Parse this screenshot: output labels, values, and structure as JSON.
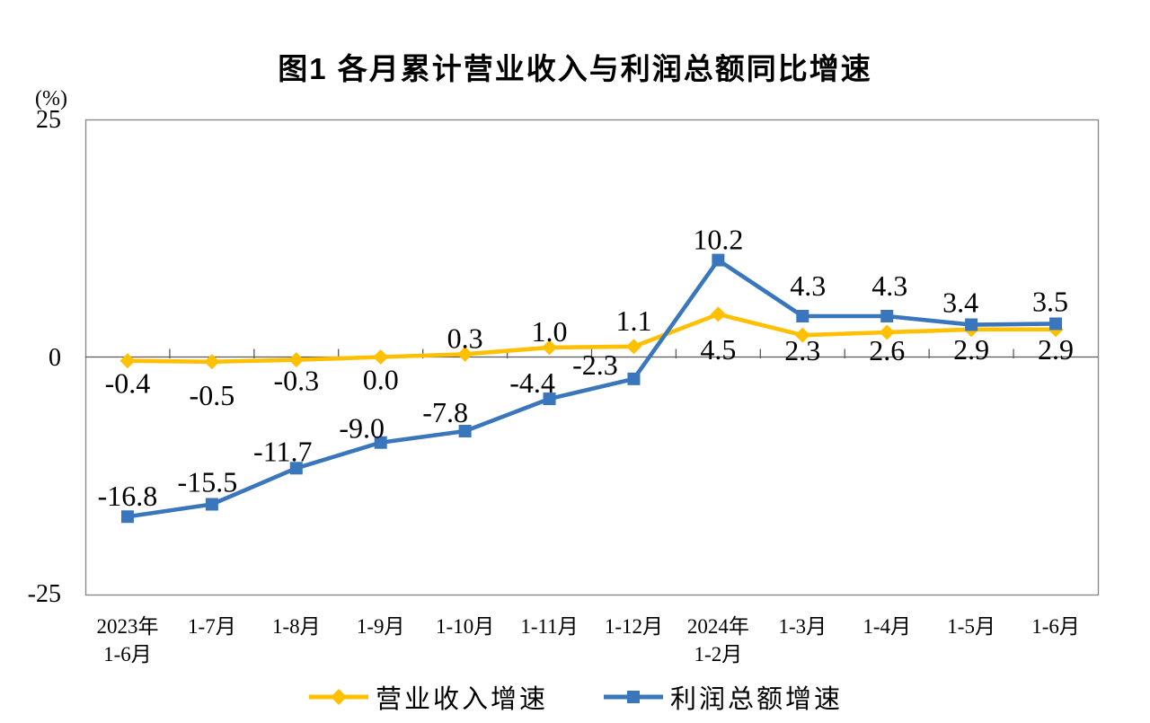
{
  "title": "图1 各月累计营业收入与利润总额同比增速",
  "chart_data": {
    "type": "line",
    "title": "图1 各月累计营业收入与利润总额同比增速",
    "unit_label": "(%)",
    "grid": "zero-line-only",
    "legend_position": "bottom",
    "categories": [
      [
        "2023年",
        "1-6月"
      ],
      [
        "1-7月"
      ],
      [
        "1-8月"
      ],
      [
        "1-9月"
      ],
      [
        "1-10月"
      ],
      [
        "1-11月"
      ],
      [
        "1-12月"
      ],
      [
        "2024年",
        "1-2月"
      ],
      [
        "1-3月"
      ],
      [
        "1-4月"
      ],
      [
        "1-5月"
      ],
      [
        "1-6月"
      ]
    ],
    "yaxis": {
      "ticks": [
        "25",
        "0",
        "-25"
      ],
      "tick_values": [
        25,
        0,
        -25
      ],
      "min": -25,
      "max": 25
    },
    "series": [
      {
        "name": "营业收入增速",
        "color": "#FFC000",
        "marker": "diamond",
        "values": [
          -0.4,
          -0.5,
          -0.3,
          0.0,
          0.3,
          1.0,
          1.1,
          4.5,
          2.3,
          2.6,
          2.9,
          2.9
        ],
        "labels": [
          "-0.4",
          "-0.5",
          "-0.3",
          "0.0",
          "0.3",
          "1.0",
          "1.1",
          "4.5",
          "2.3",
          "2.6",
          "2.9",
          "2.9"
        ],
        "label_offsets": [
          [
            0,
            36
          ],
          [
            0,
            48
          ],
          [
            0,
            34
          ],
          [
            0,
            36
          ],
          [
            0,
            -7
          ],
          [
            0,
            -7
          ],
          [
            0,
            -18
          ],
          [
            0,
            50
          ],
          [
            0,
            28
          ],
          [
            0,
            31
          ],
          [
            0,
            33
          ],
          [
            0,
            33
          ]
        ]
      },
      {
        "name": "利润总额增速",
        "color": "#3A76BC",
        "marker": "square",
        "values": [
          -16.8,
          -15.5,
          -11.7,
          -9.0,
          -7.8,
          -4.4,
          -2.3,
          10.2,
          4.3,
          4.3,
          3.4,
          3.5
        ],
        "labels": [
          "-16.8",
          "-15.5",
          "-11.7",
          "-9.0",
          "-7.8",
          "-4.4",
          "-2.3",
          "10.2",
          "4.3",
          "4.3",
          "3.4",
          "3.5"
        ],
        "label_offsets": [
          [
            0,
            -12
          ],
          [
            -5,
            -14
          ],
          [
            -15,
            -8
          ],
          [
            -21,
            -5
          ],
          [
            -22,
            -10
          ],
          [
            -19,
            -7
          ],
          [
            -43,
            -5
          ],
          [
            0,
            -12
          ],
          [
            6,
            -23
          ],
          [
            3,
            -23
          ],
          [
            -12,
            -14
          ],
          [
            -6,
            -14
          ]
        ]
      }
    ]
  },
  "colors": {
    "plot_border": "#8a8a8a",
    "axis_line": "#595959",
    "text": "#000000"
  }
}
